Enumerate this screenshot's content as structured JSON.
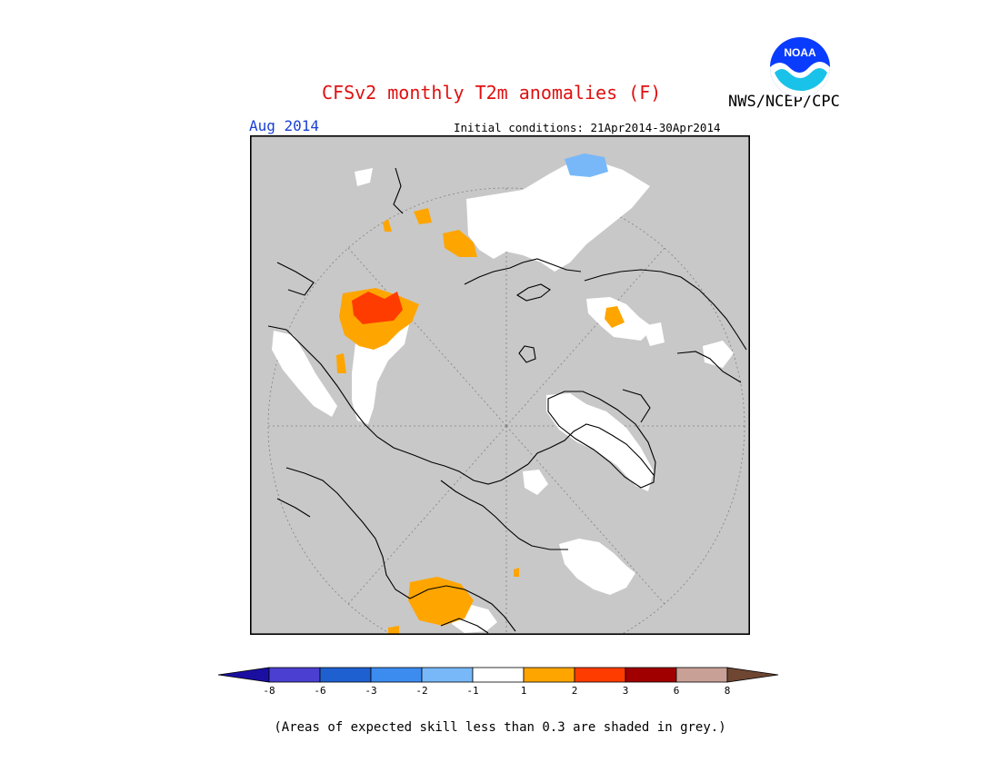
{
  "header": {
    "title": "CFSv2 monthly T2m anomalies (F)",
    "agency": "NWS/NCEP/CPC",
    "valid_month": "Aug 2014",
    "initial_conditions": "Initial conditions: 21Apr2014-30Apr2014",
    "logo_text": "NOAA"
  },
  "colors": {
    "title": "#e01010",
    "valid_month": "#1a3fd6",
    "low_skill_grey": "#c8c8c8",
    "near_normal_white": "#ffffff",
    "warm_1_2": "#ffa500",
    "warm_2_3": "#ff3c00",
    "cool_1_2": "#78b8f8",
    "cool_2_3": "#3c8cf0"
  },
  "colorbar": {
    "tick_labels": [
      "-8",
      "-6",
      "-3",
      "-2",
      "-1",
      "1",
      "2",
      "3",
      "6",
      "8"
    ],
    "bins": [
      {
        "range": "< -8",
        "color": "#1a0fa0"
      },
      {
        "range": "-8 to -6",
        "color": "#4a3fd0"
      },
      {
        "range": "-6 to -3",
        "color": "#1e60d0"
      },
      {
        "range": "-3 to -2",
        "color": "#3c8cf0"
      },
      {
        "range": "-2 to -1",
        "color": "#78b8f8"
      },
      {
        "range": "-1 to 1",
        "color": "#ffffff"
      },
      {
        "range": "1 to 2",
        "color": "#ffa500"
      },
      {
        "range": "2 to 3",
        "color": "#ff3c00"
      },
      {
        "range": "3 to 6",
        "color": "#a00000"
      },
      {
        "range": "6 to 8",
        "color": "#c8a096"
      },
      {
        "range": "> 8",
        "color": "#6e4632"
      }
    ]
  },
  "footnote": "(Areas of expected skill less than 0.3 are shaded in grey.)"
}
